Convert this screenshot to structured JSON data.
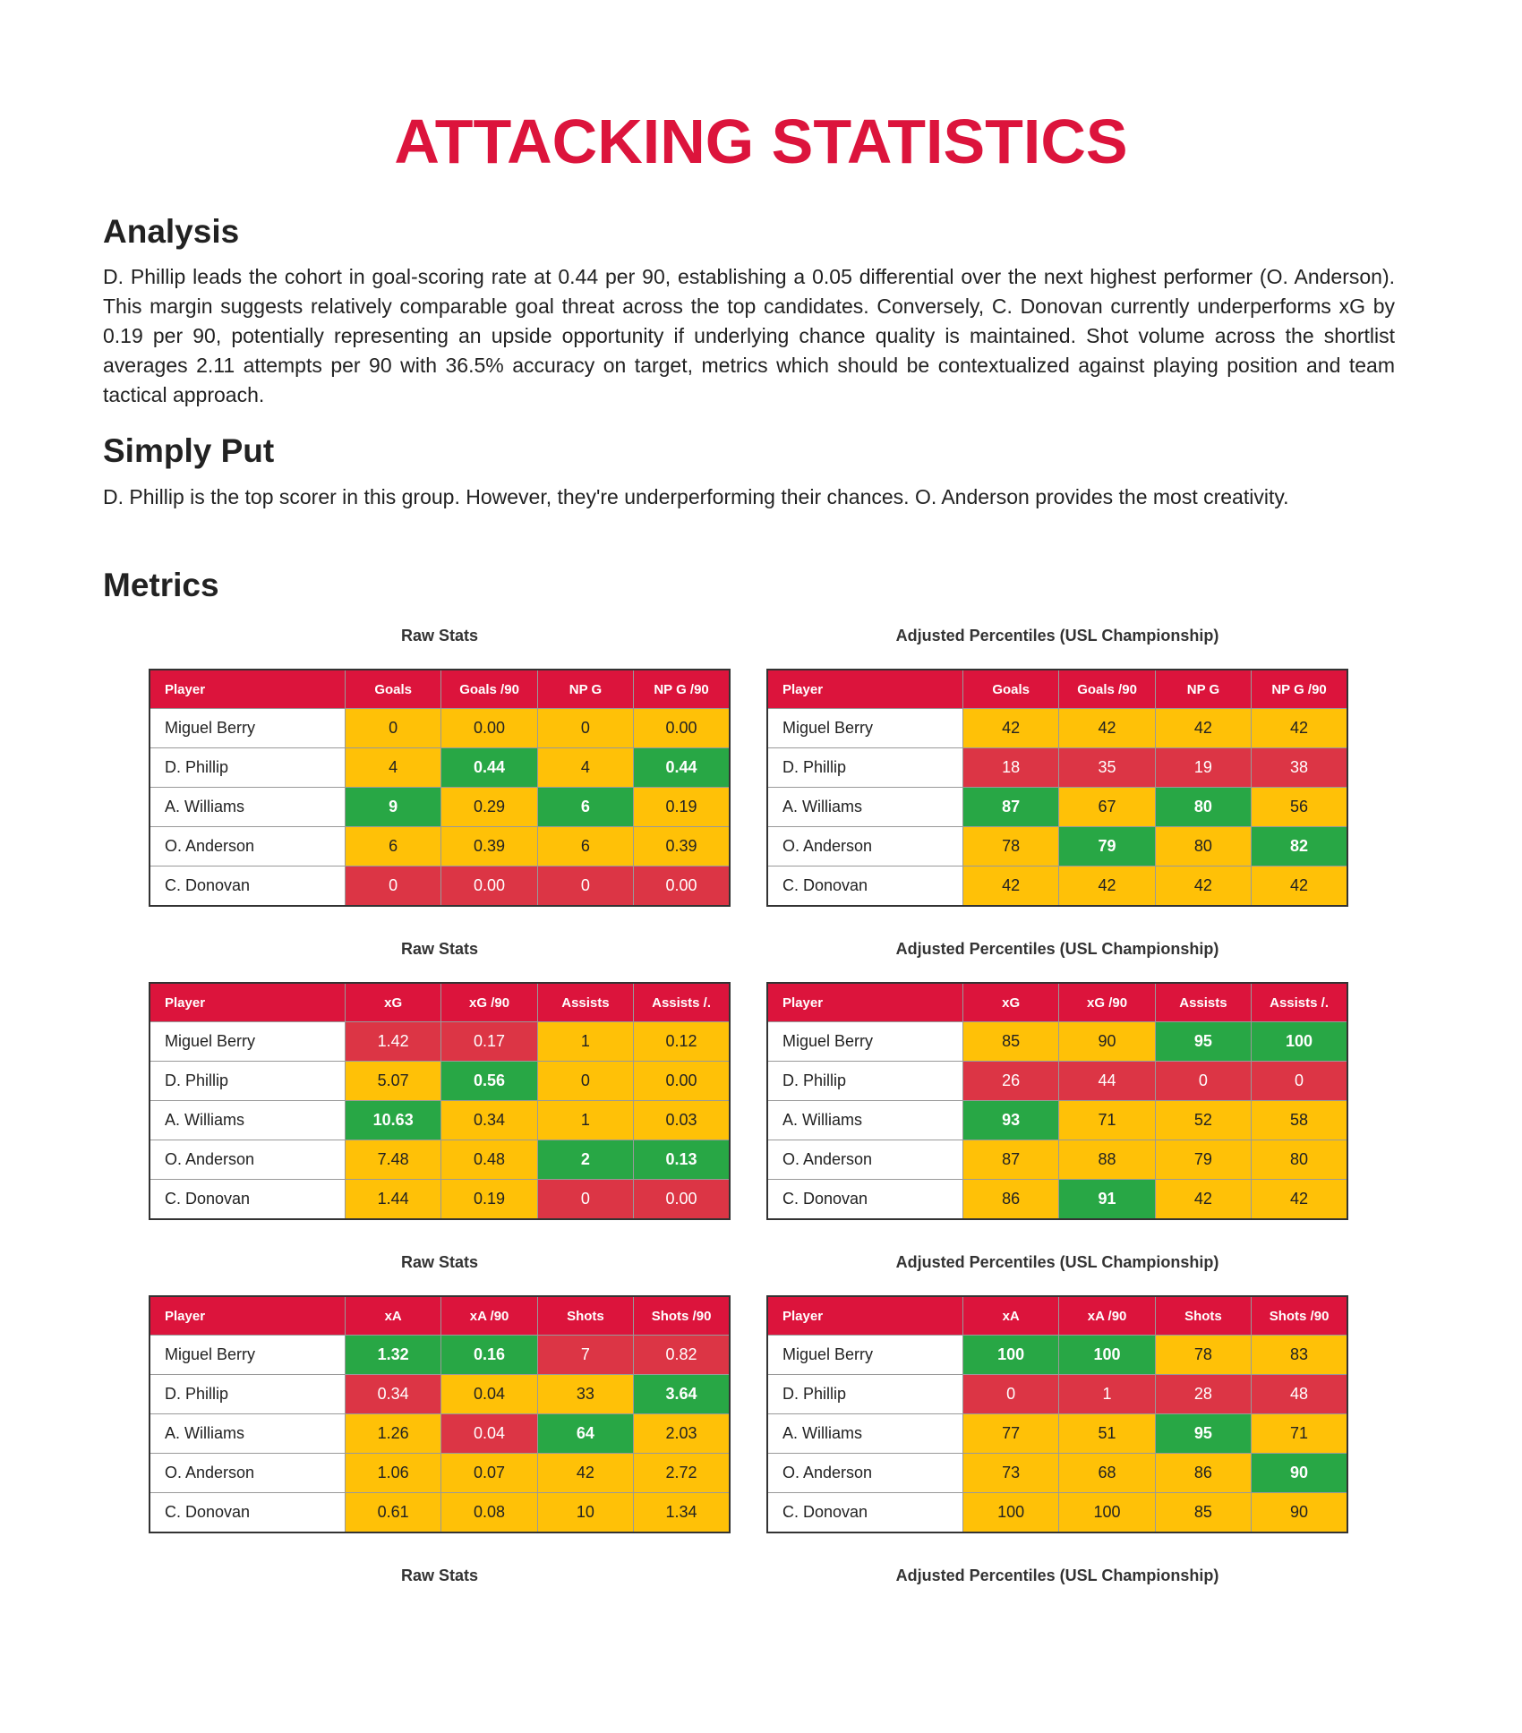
{
  "header": {
    "title": "ATTACKING STATISTICS"
  },
  "sections": [
    {
      "heading": "Analysis",
      "text": "D. Phillip leads the cohort in goal-scoring rate at 0.44 per 90, establishing a 0.05 differential over the next highest performer (O. Anderson). This margin suggests relatively comparable goal threat across the top candidates. Conversely, C. Donovan currently underperforms xG by 0.19 per 90, potentially representing an upside opportunity if underlying chance quality is maintained. Shot volume across the shortlist averages 2.11 attempts per 90 with 36.5% accuracy on target, metrics which should be contextualized against playing position and team tactical approach."
    },
    {
      "heading": "Simply Put",
      "text": "D. Phillip is the top scorer in this group. However, they're underperforming their chances. O. Anderson provides the most creativity."
    }
  ],
  "metrics": {
    "heading": "Metrics",
    "rows": [
      {
        "tables": [
          {
            "caption": "Raw Stats",
            "columns": [
              "Player",
              "Goals",
              "Goals /90",
              "NP G",
              "NP G /90"
            ],
            "rows": [
              [
                "Miguel Berry",
                "0",
                "0.00",
                "0",
                "0.00"
              ],
              [
                "D. Phillip",
                "4",
                "0.44",
                "4",
                "0.44"
              ],
              [
                "A. Williams",
                "9",
                "0.29",
                "6",
                "0.19"
              ],
              [
                "O. Anderson",
                "6",
                "0.39",
                "6",
                "0.39"
              ],
              [
                "C. Donovan",
                "0",
                "0.00",
                "0",
                "0.00"
              ]
            ],
            "colors": [
              [
                "#ffc107",
                "#ffc107",
                "#ffc107",
                "#ffc107"
              ],
              [
                "#ffc107",
                "#28a745",
                "#ffc107",
                "#28a745"
              ],
              [
                "#28a745",
                "#ffc107",
                "#28a745",
                "#ffc107"
              ],
              [
                "#ffc107",
                "#ffc107",
                "#ffc107",
                "#ffc107"
              ],
              [
                "#dc3545",
                "#dc3545",
                "#dc3545",
                "#dc3545"
              ]
            ]
          },
          {
            "caption": "Adjusted Percentiles (USL Championship)",
            "columns": [
              "Player",
              "Goals",
              "Goals /90",
              "NP G",
              "NP G /90"
            ],
            "rows": [
              [
                "Miguel Berry",
                "42",
                "42",
                "42",
                "42"
              ],
              [
                "D. Phillip",
                "18",
                "35",
                "19",
                "38"
              ],
              [
                "A. Williams",
                "87",
                "67",
                "80",
                "56"
              ],
              [
                "O. Anderson",
                "78",
                "79",
                "80",
                "82"
              ],
              [
                "C. Donovan",
                "42",
                "42",
                "42",
                "42"
              ]
            ],
            "colors": [
              [
                "#ffc107",
                "#ffc107",
                "#ffc107",
                "#ffc107"
              ],
              [
                "#dc3545",
                "#dc3545",
                "#dc3545",
                "#dc3545"
              ],
              [
                "#28a745",
                "#ffc107",
                "#28a745",
                "#ffc107"
              ],
              [
                "#ffc107",
                "#28a745",
                "#ffc107",
                "#28a745"
              ],
              [
                "#ffc107",
                "#ffc107",
                "#ffc107",
                "#ffc107"
              ]
            ]
          }
        ]
      },
      {
        "tables": [
          {
            "caption": "Raw Stats",
            "columns": [
              "Player",
              "xG",
              "xG /90",
              "Assists",
              "Assists /."
            ],
            "rows": [
              [
                "Miguel Berry",
                "1.42",
                "0.17",
                "1",
                "0.12"
              ],
              [
                "D. Phillip",
                "5.07",
                "0.56",
                "0",
                "0.00"
              ],
              [
                "A. Williams",
                "10.63",
                "0.34",
                "1",
                "0.03"
              ],
              [
                "O. Anderson",
                "7.48",
                "0.48",
                "2",
                "0.13"
              ],
              [
                "C. Donovan",
                "1.44",
                "0.19",
                "0",
                "0.00"
              ]
            ],
            "colors": [
              [
                "#dc3545",
                "#dc3545",
                "#ffc107",
                "#ffc107"
              ],
              [
                "#ffc107",
                "#28a745",
                "#ffc107",
                "#ffc107"
              ],
              [
                "#28a745",
                "#ffc107",
                "#ffc107",
                "#ffc107"
              ],
              [
                "#ffc107",
                "#ffc107",
                "#28a745",
                "#28a745"
              ],
              [
                "#ffc107",
                "#ffc107",
                "#dc3545",
                "#dc3545"
              ]
            ]
          },
          {
            "caption": "Adjusted Percentiles (USL Championship)",
            "columns": [
              "Player",
              "xG",
              "xG /90",
              "Assists",
              "Assists /."
            ],
            "rows": [
              [
                "Miguel Berry",
                "85",
                "90",
                "95",
                "100"
              ],
              [
                "D. Phillip",
                "26",
                "44",
                "0",
                "0"
              ],
              [
                "A. Williams",
                "93",
                "71",
                "52",
                "58"
              ],
              [
                "O. Anderson",
                "87",
                "88",
                "79",
                "80"
              ],
              [
                "C. Donovan",
                "86",
                "91",
                "42",
                "42"
              ]
            ],
            "colors": [
              [
                "#ffc107",
                "#ffc107",
                "#28a745",
                "#28a745"
              ],
              [
                "#dc3545",
                "#dc3545",
                "#dc3545",
                "#dc3545"
              ],
              [
                "#28a745",
                "#ffc107",
                "#ffc107",
                "#ffc107"
              ],
              [
                "#ffc107",
                "#ffc107",
                "#ffc107",
                "#ffc107"
              ],
              [
                "#ffc107",
                "#28a745",
                "#ffc107",
                "#ffc107"
              ]
            ]
          }
        ]
      },
      {
        "tables": [
          {
            "caption": "Raw Stats",
            "columns": [
              "Player",
              "xA",
              "xA /90",
              "Shots",
              "Shots /90"
            ],
            "rows": [
              [
                "Miguel Berry",
                "1.32",
                "0.16",
                "7",
                "0.82"
              ],
              [
                "D. Phillip",
                "0.34",
                "0.04",
                "33",
                "3.64"
              ],
              [
                "A. Williams",
                "1.26",
                "0.04",
                "64",
                "2.03"
              ],
              [
                "O. Anderson",
                "1.06",
                "0.07",
                "42",
                "2.72"
              ],
              [
                "C. Donovan",
                "0.61",
                "0.08",
                "10",
                "1.34"
              ]
            ],
            "colors": [
              [
                "#28a745",
                "#28a745",
                "#dc3545",
                "#dc3545"
              ],
              [
                "#dc3545",
                "#ffc107",
                "#ffc107",
                "#28a745"
              ],
              [
                "#ffc107",
                "#dc3545",
                "#28a745",
                "#ffc107"
              ],
              [
                "#ffc107",
                "#ffc107",
                "#ffc107",
                "#ffc107"
              ],
              [
                "#ffc107",
                "#ffc107",
                "#ffc107",
                "#ffc107"
              ]
            ]
          },
          {
            "caption": "Adjusted Percentiles (USL Championship)",
            "columns": [
              "Player",
              "xA",
              "xA /90",
              "Shots",
              "Shots /90"
            ],
            "rows": [
              [
                "Miguel Berry",
                "100",
                "100",
                "78",
                "83"
              ],
              [
                "D. Phillip",
                "0",
                "1",
                "28",
                "48"
              ],
              [
                "A. Williams",
                "77",
                "51",
                "95",
                "71"
              ],
              [
                "O. Anderson",
                "73",
                "68",
                "86",
                "90"
              ],
              [
                "C. Donovan",
                "100",
                "100",
                "85",
                "90"
              ]
            ],
            "colors": [
              [
                "#28a745",
                "#28a745",
                "#ffc107",
                "#ffc107"
              ],
              [
                "#dc3545",
                "#dc3545",
                "#dc3545",
                "#dc3545"
              ],
              [
                "#ffc107",
                "#ffc107",
                "#28a745",
                "#ffc107"
              ],
              [
                "#ffc107",
                "#ffc107",
                "#ffc107",
                "#28a745"
              ],
              [
                "#ffc107",
                "#ffc107",
                "#ffc107",
                "#ffc107"
              ]
            ]
          }
        ]
      },
      {
        "tables": [
          {
            "caption": "Raw Stats"
          },
          {
            "caption": "Adjusted Percentiles (USL Championship)"
          }
        ]
      }
    ]
  }
}
